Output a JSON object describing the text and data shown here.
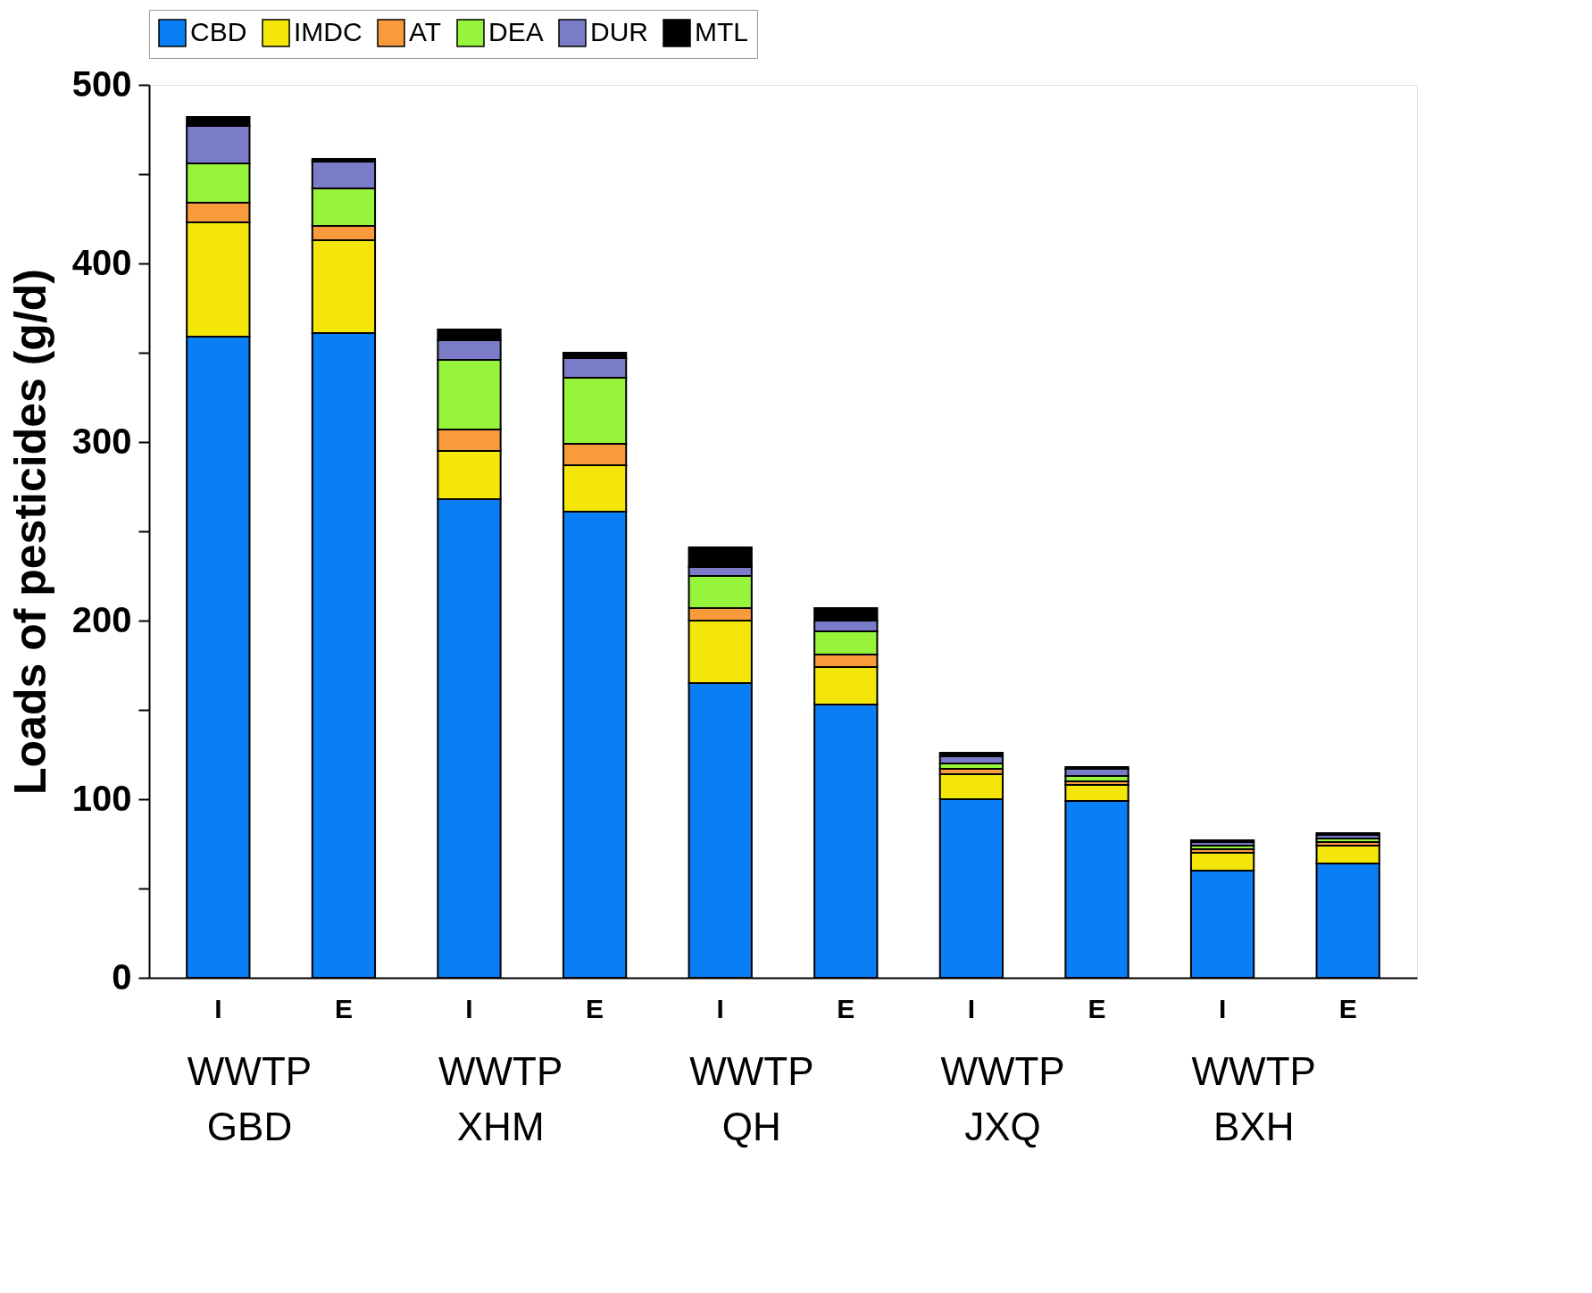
{
  "chart_data": {
    "type": "bar",
    "stacked": true,
    "ylabel": "Loads of pesticides (g/d)",
    "categories": [
      "I",
      "E",
      "I",
      "E",
      "I",
      "E",
      "I",
      "E",
      "I",
      "E"
    ],
    "series": [
      {
        "name": "CBD",
        "color": "#0a7ff5",
        "values": [
          359,
          361,
          268,
          261,
          165,
          153,
          100,
          99,
          60,
          64
        ]
      },
      {
        "name": "IMDC",
        "color": "#f5e60a",
        "values": [
          64,
          52,
          27,
          26,
          35,
          21,
          14,
          9,
          10,
          10
        ]
      },
      {
        "name": "AT",
        "color": "#f99a3c",
        "values": [
          11,
          8,
          12,
          12,
          7,
          7,
          3,
          2,
          2,
          2
        ]
      },
      {
        "name": "DEA",
        "color": "#96f53a",
        "values": [
          22,
          21,
          39,
          37,
          18,
          13,
          3,
          3,
          2,
          2
        ]
      },
      {
        "name": "DUR",
        "color": "#7b7cc8",
        "values": [
          21,
          15,
          11,
          11,
          5,
          6,
          4,
          4,
          2,
          2
        ]
      },
      {
        "name": "MTL",
        "color": "#000000",
        "values": [
          5,
          1.5,
          6,
          3,
          11,
          7,
          2,
          1,
          1,
          1
        ]
      }
    ],
    "ylim": [
      0,
      500
    ],
    "yticks": [
      0,
      {
        "value": 50,
        "label": null
      },
      100,
      {
        "value": 150,
        "label": null
      },
      200,
      {
        "value": 250,
        "label": null
      },
      300,
      {
        "value": 350,
        "label": null
      },
      400,
      {
        "value": 450,
        "label": null
      },
      500
    ],
    "annotations": [
      "WWTP\nGBD",
      "WWTP\nXHM",
      "WWTP\nQH",
      "WWTP\nJXQ",
      "WWTP\nBXH"
    ],
    "legend": "top",
    "grid": false
  }
}
